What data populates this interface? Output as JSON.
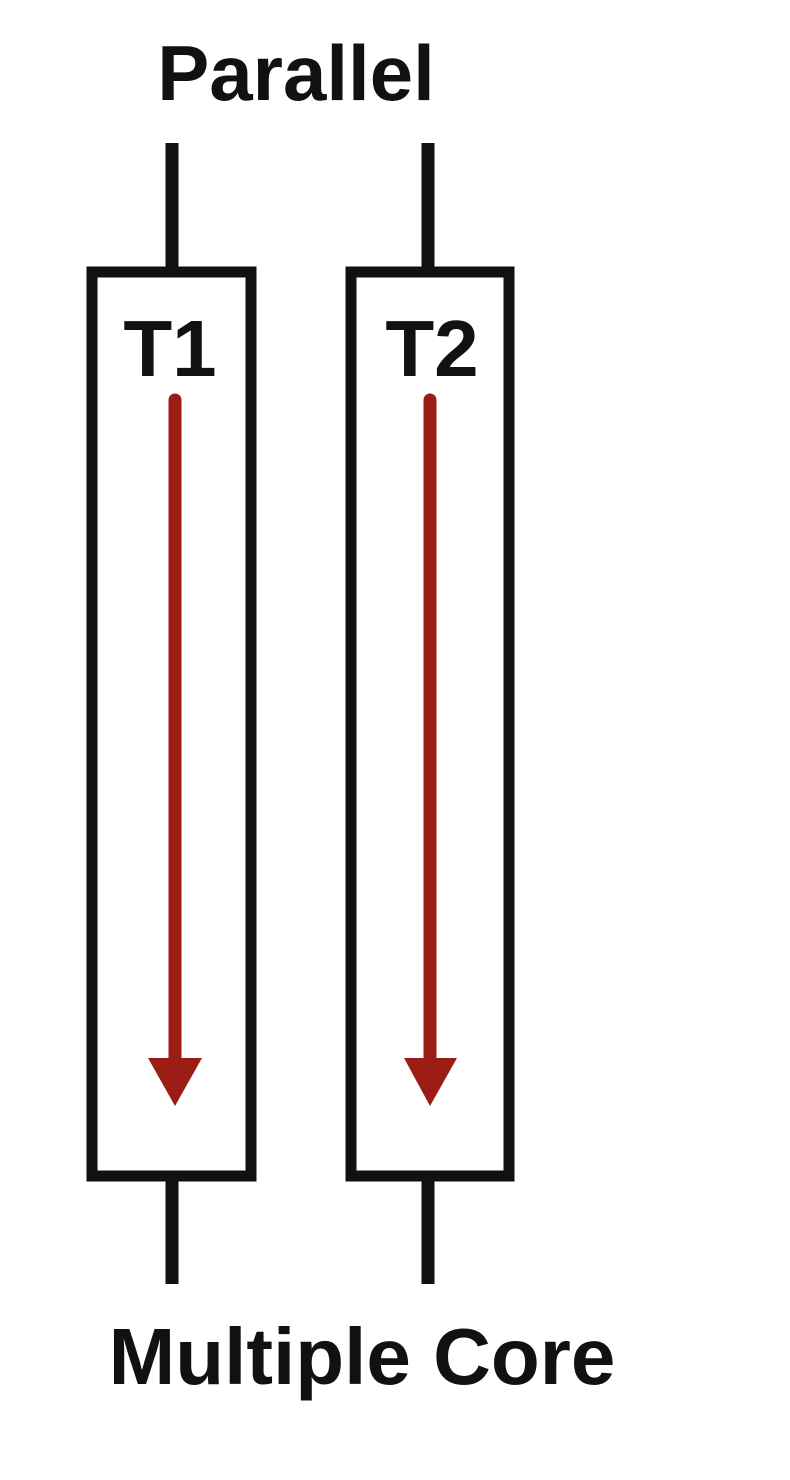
{
  "diagram": {
    "title": "Parallel",
    "footer": "Multiple Core",
    "threads": [
      {
        "label": "T1"
      },
      {
        "label": "T2"
      }
    ]
  },
  "colors": {
    "stroke": "#111111",
    "arrow": "#9b1c14",
    "background": "#ffffff"
  }
}
